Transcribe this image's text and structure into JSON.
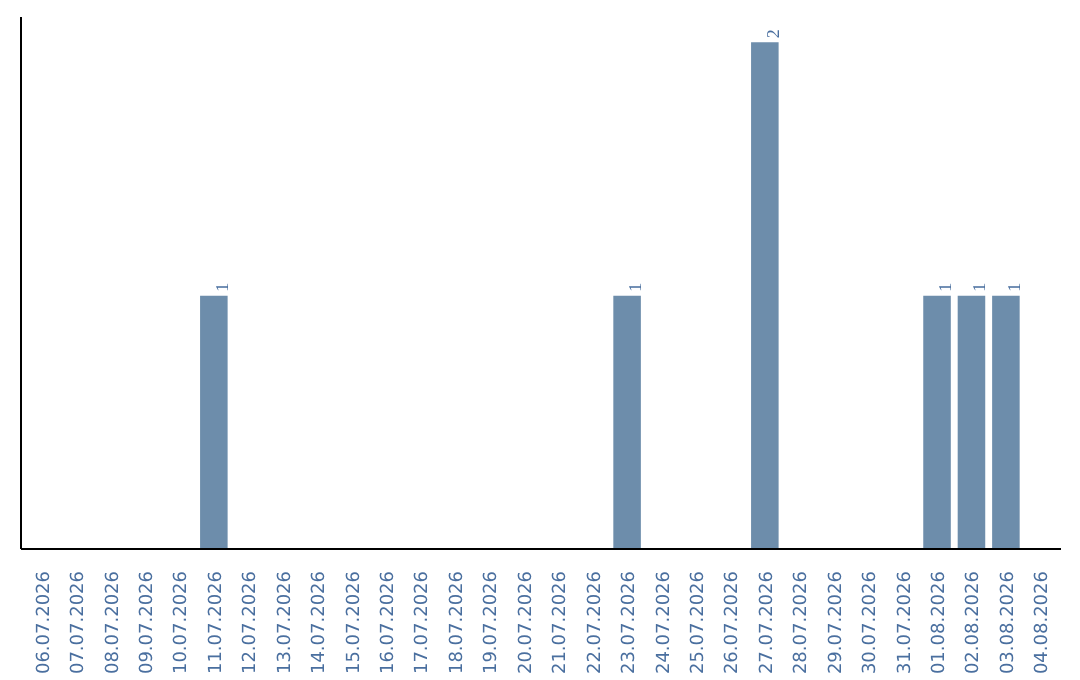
{
  "chart_data": {
    "type": "bar",
    "categories": [
      "06.07.2026",
      "07.07.2026",
      "08.07.2026",
      "09.07.2026",
      "10.07.2026",
      "11.07.2026",
      "12.07.2026",
      "13.07.2026",
      "14.07.2026",
      "15.07.2026",
      "16.07.2026",
      "17.07.2026",
      "18.07.2026",
      "19.07.2026",
      "20.07.2026",
      "21.07.2026",
      "22.07.2026",
      "23.07.2026",
      "24.07.2026",
      "25.07.2026",
      "26.07.2026",
      "27.07.2026",
      "28.07.2026",
      "29.07.2026",
      "30.07.2026",
      "31.07.2026",
      "01.08.2026",
      "02.08.2026",
      "03.08.2026",
      "04.08.2026"
    ],
    "values": [
      0,
      0,
      0,
      0,
      0,
      1,
      0,
      0,
      0,
      0,
      0,
      0,
      0,
      0,
      0,
      0,
      0,
      1,
      0,
      0,
      0,
      2,
      0,
      0,
      0,
      0,
      1,
      1,
      1,
      0
    ],
    "value_labels": [
      null,
      null,
      null,
      null,
      null,
      "1",
      null,
      null,
      null,
      null,
      null,
      null,
      null,
      null,
      null,
      null,
      null,
      "1",
      null,
      null,
      null,
      "2",
      null,
      null,
      null,
      null,
      "1",
      "1",
      "1",
      null
    ],
    "color": "#6d8dab",
    "tick_labels": "x"
  }
}
